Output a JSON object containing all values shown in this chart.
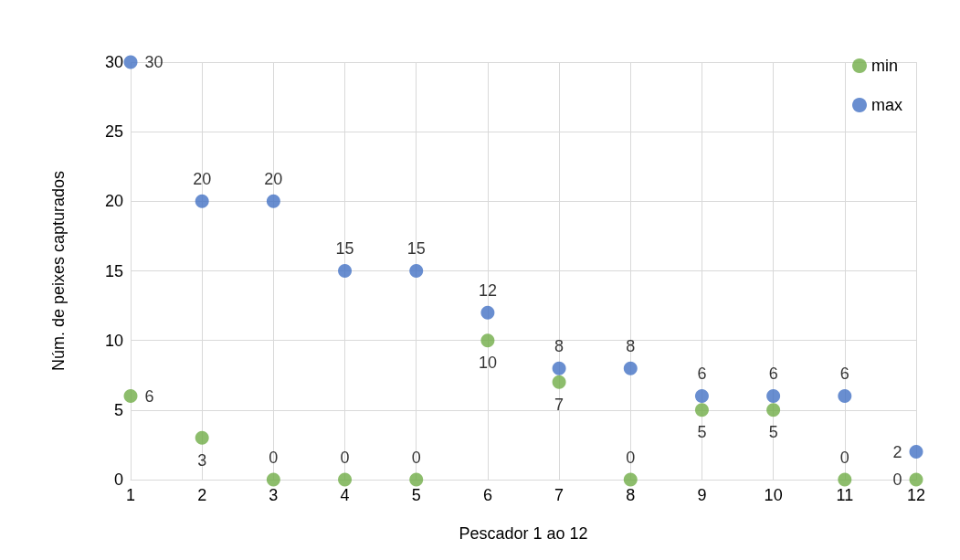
{
  "chart_data": {
    "type": "scatter",
    "xlabel": "Pescador 1 ao 12",
    "ylabel": "Núm. de peixes capturados",
    "x": [
      1,
      2,
      3,
      4,
      5,
      6,
      7,
      8,
      9,
      10,
      11,
      12
    ],
    "series": [
      {
        "name": "min",
        "color": "#70ad47",
        "values": [
          6,
          3,
          0,
          0,
          0,
          10,
          7,
          0,
          5,
          5,
          0,
          0
        ]
      },
      {
        "name": "max",
        "color": "#4472c4",
        "values": [
          30,
          20,
          20,
          15,
          15,
          12,
          8,
          8,
          6,
          6,
          6,
          2
        ]
      }
    ],
    "xlim": [
      1,
      12
    ],
    "xticks": [
      1,
      2,
      3,
      4,
      5,
      6,
      7,
      8,
      9,
      10,
      11,
      12
    ],
    "ylim": [
      0,
      30
    ],
    "yticks": [
      0,
      5,
      10,
      15,
      20,
      25,
      30
    ],
    "grid": true,
    "legend": "top right",
    "marker": "circle",
    "data_labels": true
  }
}
